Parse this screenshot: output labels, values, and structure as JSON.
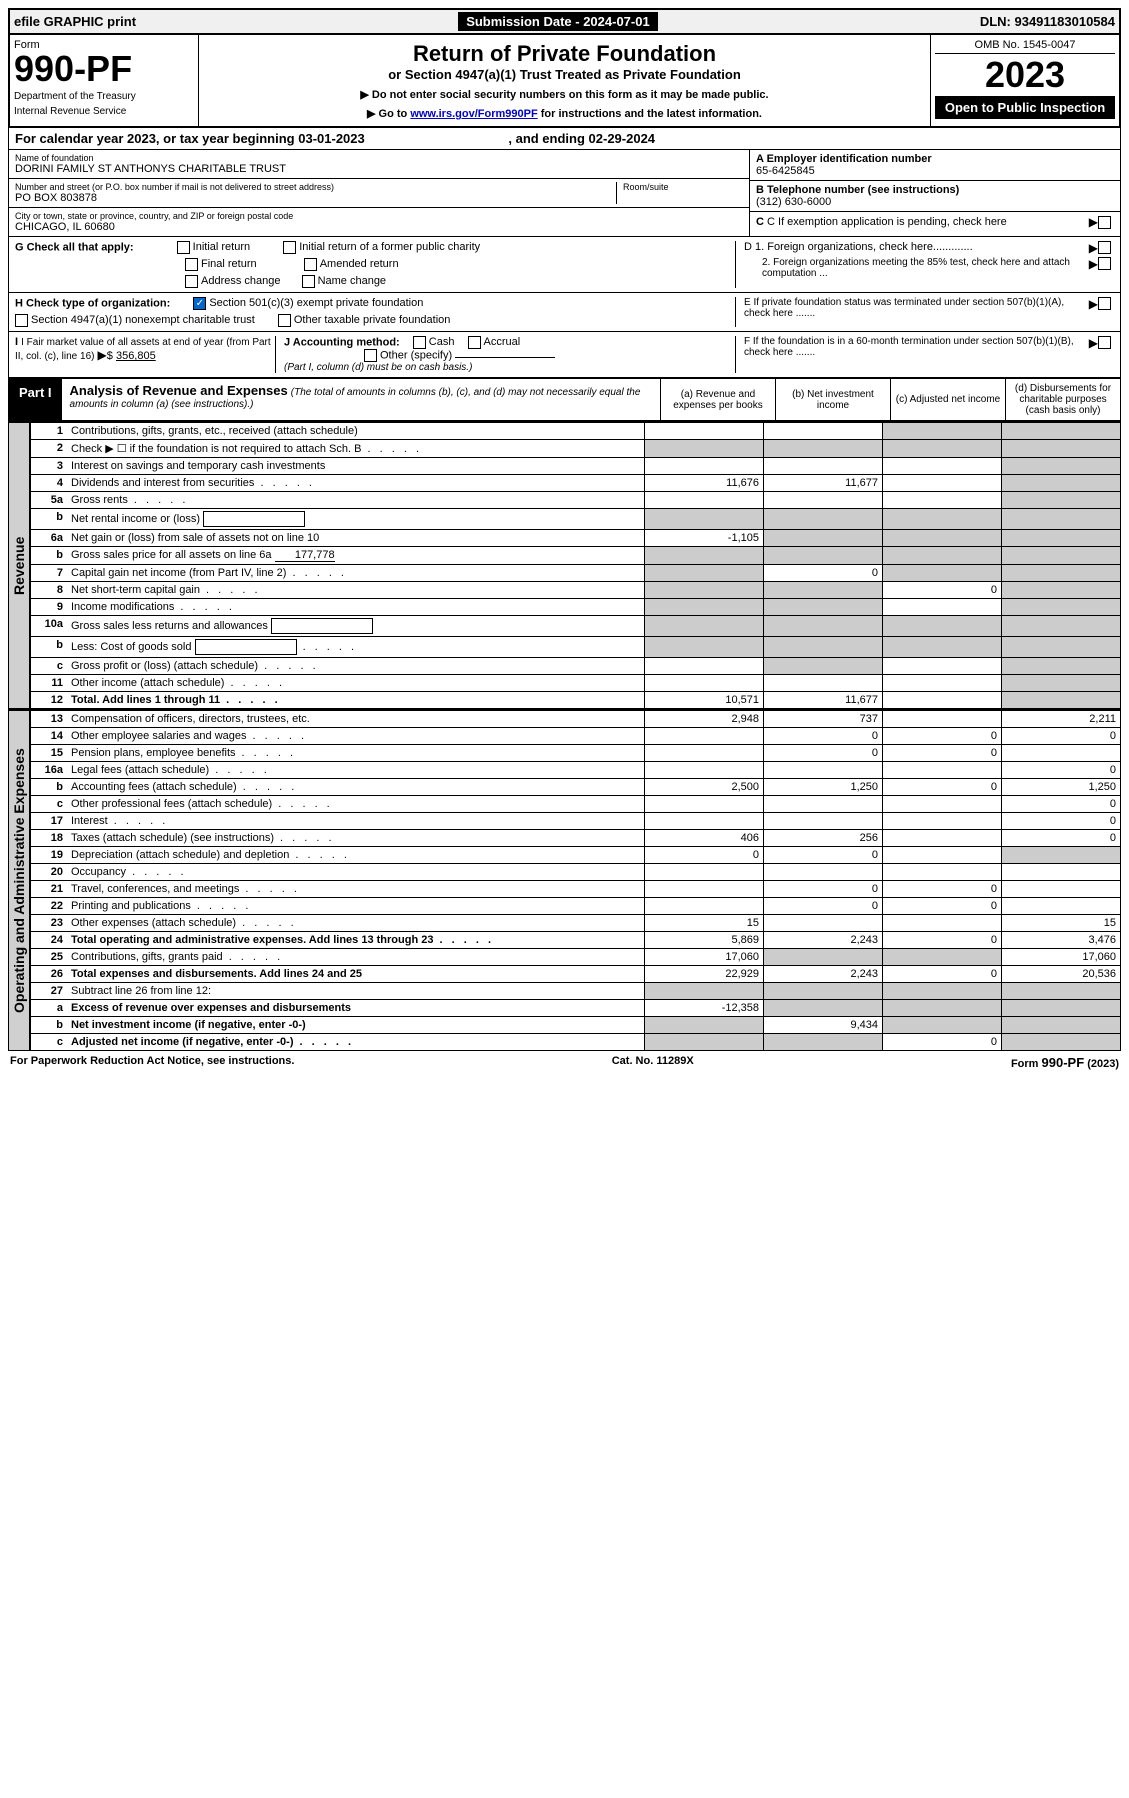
{
  "topbar": {
    "efile": "efile GRAPHIC print",
    "submission_label": "Submission Date - 2024-07-01",
    "dln": "DLN: 93491183010584"
  },
  "header": {
    "form_label": "Form",
    "form_number": "990-PF",
    "dept1": "Department of the Treasury",
    "dept2": "Internal Revenue Service",
    "title": "Return of Private Foundation",
    "subtitle": "or Section 4947(a)(1) Trust Treated as Private Foundation",
    "note1": "▶ Do not enter social security numbers on this form as it may be made public.",
    "note2_pre": "▶ Go to ",
    "note2_link": "www.irs.gov/Form990PF",
    "note2_post": " for instructions and the latest information.",
    "omb": "OMB No. 1545-0047",
    "year": "2023",
    "open": "Open to Public Inspection"
  },
  "period": {
    "text_pre": "For calendar year 2023, or tax year beginning ",
    "begin": "03-01-2023",
    "mid": " , and ending ",
    "end": "02-29-2024"
  },
  "foundation": {
    "name_label": "Name of foundation",
    "name": "DORINI FAMILY ST ANTHONYS CHARITABLE TRUST",
    "addr_label": "Number and street (or P.O. box number if mail is not delivered to street address)",
    "addr": "PO BOX 803878",
    "room_label": "Room/suite",
    "city_label": "City or town, state or province, country, and ZIP or foreign postal code",
    "city": "CHICAGO, IL  60680",
    "ein_label": "A Employer identification number",
    "ein": "65-6425845",
    "phone_label": "B Telephone number (see instructions)",
    "phone": "(312) 630-6000",
    "c_label": "C If exemption application is pending, check here",
    "d1": "D 1. Foreign organizations, check here.............",
    "d2": "2. Foreign organizations meeting the 85% test, check here and attach computation ...",
    "e": "E  If private foundation status was terminated under section 507(b)(1)(A), check here .......",
    "f": "F  If the foundation is in a 60-month termination under section 507(b)(1)(B), check here .......",
    "g_label": "G Check all that apply:",
    "g_opts": [
      "Initial return",
      "Initial return of a former public charity",
      "Final return",
      "Amended return",
      "Address change",
      "Name change"
    ],
    "h_label": "H Check type of organization:",
    "h1": "Section 501(c)(3) exempt private foundation",
    "h2": "Section 4947(a)(1) nonexempt charitable trust",
    "h3": "Other taxable private foundation",
    "i_label": "I Fair market value of all assets at end of year (from Part II, col. (c), line 16)",
    "i_value": "356,805",
    "j_label": "J Accounting method:",
    "j_opts": [
      "Cash",
      "Accrual",
      "Other (specify)"
    ],
    "j_note": "(Part I, column (d) must be on cash basis.)"
  },
  "part1": {
    "label": "Part I",
    "title": "Analysis of Revenue and Expenses",
    "subtitle": "(The total of amounts in columns (b), (c), and (d) may not necessarily equal the amounts in column (a) (see instructions).)",
    "col_a": "(a)  Revenue and expenses per books",
    "col_b": "(b)  Net investment income",
    "col_c": "(c)  Adjusted net income",
    "col_d": "(d)  Disbursements for charitable purposes (cash basis only)"
  },
  "side_labels": {
    "revenue": "Revenue",
    "expenses": "Operating and Administrative Expenses"
  },
  "rows": [
    {
      "no": "1",
      "desc": "Contributions, gifts, grants, etc., received (attach schedule)",
      "a": "",
      "b": "",
      "c": "",
      "d": "",
      "shade_c": true,
      "shade_d": true
    },
    {
      "no": "2",
      "desc": "Check ▶ ☐ if the foundation is not required to attach Sch. B",
      "a": "",
      "b": "",
      "c": "",
      "d": "",
      "shade_a": true,
      "shade_b": true,
      "shade_c": true,
      "shade_d": true,
      "dots": true
    },
    {
      "no": "3",
      "desc": "Interest on savings and temporary cash investments",
      "a": "",
      "b": "",
      "c": "",
      "d": "",
      "shade_d": true
    },
    {
      "no": "4",
      "desc": "Dividends and interest from securities",
      "a": "11,676",
      "b": "11,677",
      "c": "",
      "d": "",
      "shade_d": true,
      "dots": true
    },
    {
      "no": "5a",
      "desc": "Gross rents",
      "a": "",
      "b": "",
      "c": "",
      "d": "",
      "shade_d": true,
      "dots": true
    },
    {
      "no": "b",
      "desc": "Net rental income or (loss)",
      "a": "",
      "b": "",
      "c": "",
      "d": "",
      "shade_a": true,
      "shade_b": true,
      "shade_c": true,
      "shade_d": true,
      "inline_box": true
    },
    {
      "no": "6a",
      "desc": "Net gain or (loss) from sale of assets not on line 10",
      "a": "-1,105",
      "b": "",
      "c": "",
      "d": "",
      "shade_b": true,
      "shade_c": true,
      "shade_d": true
    },
    {
      "no": "b",
      "desc": "Gross sales price for all assets on line 6a",
      "a": "",
      "b": "",
      "c": "",
      "d": "",
      "shade_a": true,
      "shade_b": true,
      "shade_c": true,
      "shade_d": true,
      "inline_val": "177,778"
    },
    {
      "no": "7",
      "desc": "Capital gain net income (from Part IV, line 2)",
      "a": "",
      "b": "0",
      "c": "",
      "d": "",
      "shade_a": true,
      "shade_c": true,
      "shade_d": true,
      "dots": true
    },
    {
      "no": "8",
      "desc": "Net short-term capital gain",
      "a": "",
      "b": "",
      "c": "0",
      "d": "",
      "shade_a": true,
      "shade_b": true,
      "shade_d": true,
      "dots": true
    },
    {
      "no": "9",
      "desc": "Income modifications",
      "a": "",
      "b": "",
      "c": "",
      "d": "",
      "shade_a": true,
      "shade_b": true,
      "shade_d": true,
      "dots": true
    },
    {
      "no": "10a",
      "desc": "Gross sales less returns and allowances",
      "a": "",
      "b": "",
      "c": "",
      "d": "",
      "shade_a": true,
      "shade_b": true,
      "shade_c": true,
      "shade_d": true,
      "inline_box": true
    },
    {
      "no": "b",
      "desc": "Less: Cost of goods sold",
      "a": "",
      "b": "",
      "c": "",
      "d": "",
      "shade_a": true,
      "shade_b": true,
      "shade_c": true,
      "shade_d": true,
      "inline_box": true,
      "dots": true
    },
    {
      "no": "c",
      "desc": "Gross profit or (loss) (attach schedule)",
      "a": "",
      "b": "",
      "c": "",
      "d": "",
      "shade_b": true,
      "shade_d": true,
      "dots": true
    },
    {
      "no": "11",
      "desc": "Other income (attach schedule)",
      "a": "",
      "b": "",
      "c": "",
      "d": "",
      "shade_d": true,
      "dots": true
    },
    {
      "no": "12",
      "desc": "Total. Add lines 1 through 11",
      "a": "10,571",
      "b": "11,677",
      "c": "",
      "d": "",
      "shade_d": true,
      "bold": true,
      "dots": true
    }
  ],
  "exp_rows": [
    {
      "no": "13",
      "desc": "Compensation of officers, directors, trustees, etc.",
      "a": "2,948",
      "b": "737",
      "c": "",
      "d": "2,211"
    },
    {
      "no": "14",
      "desc": "Other employee salaries and wages",
      "a": "",
      "b": "0",
      "c": "0",
      "d": "0",
      "dots": true
    },
    {
      "no": "15",
      "desc": "Pension plans, employee benefits",
      "a": "",
      "b": "0",
      "c": "0",
      "d": "",
      "dots": true
    },
    {
      "no": "16a",
      "desc": "Legal fees (attach schedule)",
      "a": "",
      "b": "",
      "c": "",
      "d": "0",
      "dots": true
    },
    {
      "no": "b",
      "desc": "Accounting fees (attach schedule)",
      "a": "2,500",
      "b": "1,250",
      "c": "0",
      "d": "1,250",
      "dots": true
    },
    {
      "no": "c",
      "desc": "Other professional fees (attach schedule)",
      "a": "",
      "b": "",
      "c": "",
      "d": "0",
      "dots": true
    },
    {
      "no": "17",
      "desc": "Interest",
      "a": "",
      "b": "",
      "c": "",
      "d": "0",
      "dots": true
    },
    {
      "no": "18",
      "desc": "Taxes (attach schedule) (see instructions)",
      "a": "406",
      "b": "256",
      "c": "",
      "d": "0",
      "dots": true
    },
    {
      "no": "19",
      "desc": "Depreciation (attach schedule) and depletion",
      "a": "0",
      "b": "0",
      "c": "",
      "d": "",
      "shade_d": true,
      "dots": true
    },
    {
      "no": "20",
      "desc": "Occupancy",
      "a": "",
      "b": "",
      "c": "",
      "d": "",
      "dots": true
    },
    {
      "no": "21",
      "desc": "Travel, conferences, and meetings",
      "a": "",
      "b": "0",
      "c": "0",
      "d": "",
      "dots": true
    },
    {
      "no": "22",
      "desc": "Printing and publications",
      "a": "",
      "b": "0",
      "c": "0",
      "d": "",
      "dots": true
    },
    {
      "no": "23",
      "desc": "Other expenses (attach schedule)",
      "a": "15",
      "b": "",
      "c": "",
      "d": "15",
      "dots": true
    },
    {
      "no": "24",
      "desc": "Total operating and administrative expenses. Add lines 13 through 23",
      "a": "5,869",
      "b": "2,243",
      "c": "0",
      "d": "3,476",
      "bold": true,
      "dots": true
    },
    {
      "no": "25",
      "desc": "Contributions, gifts, grants paid",
      "a": "17,060",
      "b": "",
      "c": "",
      "d": "17,060",
      "shade_b": true,
      "shade_c": true,
      "dots": true
    },
    {
      "no": "26",
      "desc": "Total expenses and disbursements. Add lines 24 and 25",
      "a": "22,929",
      "b": "2,243",
      "c": "0",
      "d": "20,536",
      "bold": true
    },
    {
      "no": "27",
      "desc": "Subtract line 26 from line 12:",
      "a": "",
      "b": "",
      "c": "",
      "d": "",
      "shade_a": true,
      "shade_b": true,
      "shade_c": true,
      "shade_d": true
    },
    {
      "no": "a",
      "desc": "Excess of revenue over expenses and disbursements",
      "a": "-12,358",
      "b": "",
      "c": "",
      "d": "",
      "shade_b": true,
      "shade_c": true,
      "shade_d": true,
      "bold": true
    },
    {
      "no": "b",
      "desc": "Net investment income (if negative, enter -0-)",
      "a": "",
      "b": "9,434",
      "c": "",
      "d": "",
      "shade_a": true,
      "shade_c": true,
      "shade_d": true,
      "bold": true
    },
    {
      "no": "c",
      "desc": "Adjusted net income (if negative, enter -0-)",
      "a": "",
      "b": "",
      "c": "0",
      "d": "",
      "shade_a": true,
      "shade_b": true,
      "shade_d": true,
      "bold": true,
      "dots": true
    }
  ],
  "footer": {
    "left": "For Paperwork Reduction Act Notice, see instructions.",
    "mid": "Cat. No. 11289X",
    "right": "Form 990-PF (2023)"
  }
}
